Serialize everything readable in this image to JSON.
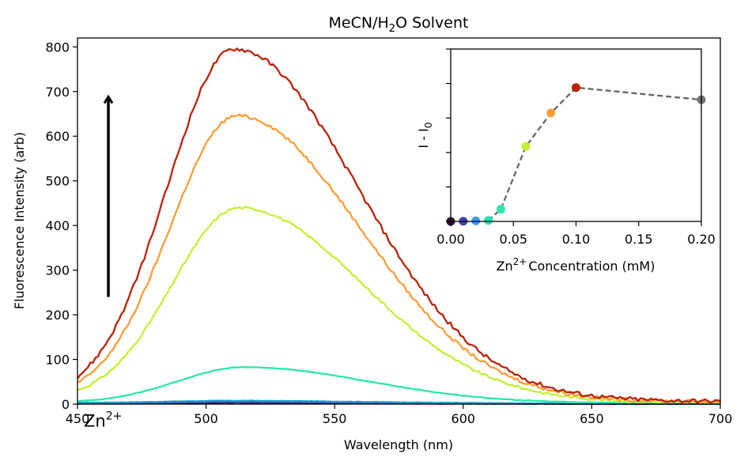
{
  "figure": {
    "title_main": "MeCN/H",
    "title_sub": "2",
    "title_tail": "O Solvent"
  },
  "chart_data": [
    {
      "type": "line",
      "xlabel": "Wavelength (nm)",
      "ylabel": "Fluorescence Intensity (arb)",
      "xlim": [
        450,
        700
      ],
      "ylim": [
        0,
        820
      ],
      "xticks": [
        "450",
        "500",
        "550",
        "600",
        "650",
        "700"
      ],
      "yticks": [
        "0",
        "100",
        "200",
        "300",
        "400",
        "500",
        "600",
        "700",
        "800"
      ],
      "grid": false,
      "legend": "none",
      "annotation": {
        "text": "Zn",
        "superscript": "2+",
        "arrow": {
          "x": 462,
          "y_from": 240,
          "y_to": 690
        }
      },
      "series": [
        {
          "color": "#30123b",
          "curve": {
            "peak_x": 512,
            "amplitude": 2,
            "base_start": 1,
            "base_end": 0.5
          }
        },
        {
          "color": "#4145ab",
          "curve": {
            "peak_x": 512,
            "amplitude": 3,
            "base_start": 1.5,
            "base_end": 0.5
          }
        },
        {
          "color": "#1ea0ce",
          "curve": {
            "peak_x": 512,
            "amplitude": 5,
            "base_start": 3,
            "base_end": 1
          }
        },
        {
          "color": "#2ee5ae",
          "curve": {
            "peak_x": 515,
            "amplitude": 80,
            "base_start": 3,
            "base_end": 2
          }
        },
        {
          "color": "#c3f034",
          "curve": {
            "peak_x": 513,
            "amplitude": 433,
            "base_start": 8,
            "base_end": 3
          }
        },
        {
          "color": "#fb9c36",
          "curve": {
            "peak_x": 512,
            "amplitude": 637,
            "base_start": 10,
            "base_end": 5
          }
        },
        {
          "color": "#bb2108",
          "curve": {
            "peak_x": 511,
            "amplitude": 785,
            "base_start": 12,
            "base_end": 6
          }
        }
      ]
    },
    {
      "type": "scatter",
      "xlabel": "Zn",
      "xlabel_sup": "2+",
      "xlabel_tail": "Concentration (mM)",
      "ylabel": "I - I",
      "ylabel_sub": "0",
      "xlim": [
        0,
        0.2
      ],
      "ylim": [
        0,
        850
      ],
      "xticks": [
        "0.00",
        "0.05",
        "0.10",
        "0.15",
        "0.20"
      ],
      "ytick_values": [
        0,
        170,
        340,
        510,
        680,
        850
      ],
      "y_tick_labels_shown": false,
      "line_style": "dashed",
      "line_color": "#666666",
      "x": [
        0.0,
        0.01,
        0.02,
        0.03,
        0.04,
        0.06,
        0.08,
        0.1,
        0.2
      ],
      "y": [
        0,
        1,
        3,
        5,
        60,
        370,
        535,
        660,
        600
      ],
      "colors": [
        "#30123b",
        "#4145ab",
        "#3e9bfe",
        "#1ae4b6",
        "#2ee5ae",
        "#c3f034",
        "#fb9c36",
        "#bb2108",
        "#777777"
      ],
      "dashed_from_index": 3
    }
  ]
}
